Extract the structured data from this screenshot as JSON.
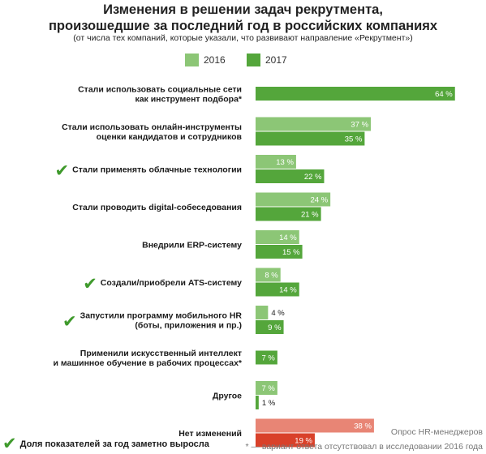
{
  "title_line1": "Изменения в решении задач рекрутмента,",
  "title_line2": "произошедшие за последний год в российских компаниях",
  "subtitle": "(от числа тех компаний, которые указали, что развивают направление «Рекрутмент»)",
  "legend": [
    {
      "name": "2016",
      "color": "#8cc676"
    },
    {
      "name": "2017",
      "color": "#54a63b"
    }
  ],
  "colors": {
    "light_green": "#8cc676",
    "dark_green": "#54a63b",
    "light_red": "#e88575",
    "dark_red": "#d9412a",
    "checkmark": "#3f9a2c"
  },
  "check_icon": "✔",
  "chart_data": {
    "type": "bar",
    "orientation": "horizontal",
    "xlim": [
      0,
      64
    ],
    "value_suffix": " %",
    "categories": [
      {
        "label": [
          "Стали использовать социальные сети",
          "как инструмент подбора*"
        ],
        "checked": false,
        "v2016": null,
        "v2017": 64
      },
      {
        "label": [
          "Стали использовать онлайн-инструменты",
          "оценки кандидатов и сотрудников"
        ],
        "checked": false,
        "v2016": 37,
        "v2017": 35
      },
      {
        "label": [
          "Стали применять облачные технологии"
        ],
        "checked": true,
        "v2016": 13,
        "v2017": 22
      },
      {
        "label": [
          "Стали проводить digital-собеседования"
        ],
        "checked": false,
        "v2016": 24,
        "v2017": 21
      },
      {
        "label": [
          "Внедрили ERP-систему"
        ],
        "checked": false,
        "v2016": 14,
        "v2017": 15
      },
      {
        "label": [
          "Создали/приобрели  ATS-систему"
        ],
        "checked": true,
        "v2016": 8,
        "v2017": 14
      },
      {
        "label": [
          "Запустили программу мобильного HR",
          "(боты, приложения и пр.)"
        ],
        "checked": true,
        "v2016": 4,
        "v2017": 9
      },
      {
        "label": [
          "Применили искусственный интеллект",
          "и машинное обучение в рабочих процессах*"
        ],
        "checked": false,
        "v2016": null,
        "v2017": 7
      },
      {
        "label": [
          "Другое"
        ],
        "checked": false,
        "v2016": 7,
        "v2017": 1
      },
      {
        "label": [
          "Нет изменений"
        ],
        "checked": false,
        "v2016": 38,
        "v2017": 19,
        "highlight": "red"
      }
    ]
  },
  "footer": {
    "checked_legend": "Доля показателей за год заметно выросла",
    "source": "Опрос HR-менеджеров",
    "note": "* — вариант ответа отсутствовал в исследовании 2016 года"
  }
}
